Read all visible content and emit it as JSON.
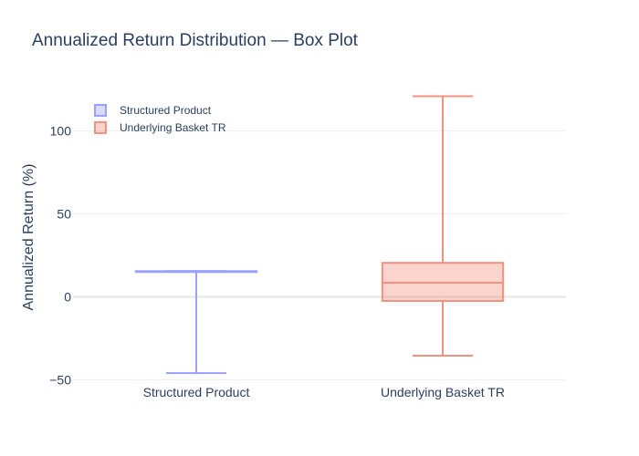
{
  "chart_data": {
    "type": "box",
    "title": "Annualized Return Distribution — Box Plot",
    "xlabel": "",
    "ylabel": "Annualized Return (%)",
    "ylim": [
      -52,
      124
    ],
    "yticks": [
      {
        "value": -50,
        "label": "−50"
      },
      {
        "value": 0,
        "label": "0"
      },
      {
        "value": 50,
        "label": "50"
      },
      {
        "value": 100,
        "label": "100"
      }
    ],
    "grid": true,
    "legend_position": "top-left",
    "categories": [
      "Structured Product",
      "Underlying Basket TR"
    ],
    "series": [
      {
        "name": "Structured Product",
        "category": "Structured Product",
        "color": "#636efa",
        "min": -46,
        "q1": 15,
        "median": 15,
        "q3": 15.5,
        "max": 15.5
      },
      {
        "name": "Underlying Basket TR",
        "category": "Underlying Basket TR",
        "color": "#ef553b",
        "min": -35.5,
        "q1": -2.5,
        "median": 8.5,
        "q3": 20.5,
        "max": 121
      }
    ]
  }
}
